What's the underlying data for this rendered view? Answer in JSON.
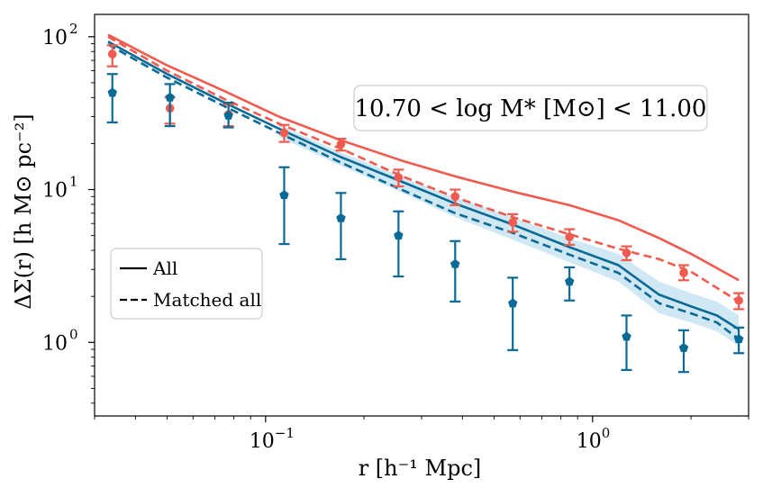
{
  "chart_data": {
    "type": "line",
    "xscale": "log",
    "yscale": "log",
    "xlim": [
      0.03,
      3.0
    ],
    "ylim": [
      0.33,
      140
    ],
    "xlabel": "r [h⁻¹ Mpc]",
    "ylabel": "ΔΣ(r) [h M⊙ pc⁻²]",
    "annotation": "10.70 < log M* [M⊙] < 11.00",
    "x_ticks": [
      {
        "value": 0.1,
        "base": "10",
        "exp": "−1"
      },
      {
        "value": 1.0,
        "base": "10",
        "exp": "0"
      }
    ],
    "y_ticks": [
      {
        "value": 1,
        "base": "10",
        "exp": "0"
      },
      {
        "value": 10,
        "base": "10",
        "exp": "1"
      },
      {
        "value": 100,
        "base": "10",
        "exp": "2"
      }
    ],
    "legend": {
      "position": "center-left",
      "entries": [
        {
          "label": "All",
          "style": "solid"
        },
        {
          "label": "Matched all",
          "style": "dashed"
        }
      ]
    },
    "colors": {
      "red": "#f05a4f",
      "blue": "#0a6a96",
      "band": "#bfe0ef"
    },
    "series": [
      {
        "name": "red-all-model",
        "color": "red",
        "style": "solid",
        "x": [
          0.033,
          0.05,
          0.075,
          0.11,
          0.17,
          0.26,
          0.38,
          0.57,
          0.85,
          1.2,
          1.6,
          2.0,
          2.8
        ],
        "y": [
          103,
          65,
          44,
          30,
          21,
          15.5,
          12.2,
          9.7,
          7.9,
          6.3,
          4.8,
          3.8,
          2.55
        ]
      },
      {
        "name": "red-matched-model",
        "color": "red",
        "style": "dashed",
        "x": [
          0.033,
          0.05,
          0.075,
          0.11,
          0.17,
          0.26,
          0.38,
          0.57,
          0.85,
          1.2,
          1.6,
          2.0,
          2.8
        ],
        "y": [
          100,
          60,
          39,
          27,
          18.5,
          12.3,
          8.9,
          6.6,
          5.1,
          4.1,
          3.5,
          2.9,
          1.85
        ]
      },
      {
        "name": "blue-all-model",
        "color": "blue",
        "style": "solid",
        "x": [
          0.033,
          0.05,
          0.075,
          0.11,
          0.17,
          0.26,
          0.38,
          0.57,
          0.85,
          1.2,
          1.6,
          2.0,
          2.4,
          2.8
        ],
        "y": [
          93,
          57,
          37,
          25,
          16.3,
          11.3,
          8.1,
          5.9,
          4.2,
          3.2,
          2.05,
          1.72,
          1.5,
          1.22
        ]
      },
      {
        "name": "blue-matched-model",
        "color": "blue",
        "style": "dashed",
        "x": [
          0.033,
          0.05,
          0.075,
          0.11,
          0.17,
          0.26,
          0.38,
          0.57,
          0.85,
          1.2,
          1.6,
          2.0,
          2.4,
          2.8
        ],
        "y": [
          89,
          54,
          35,
          23.5,
          15,
          10,
          7,
          5.2,
          3.75,
          2.85,
          1.8,
          1.55,
          1.35,
          1.05
        ]
      }
    ],
    "band": {
      "x": [
        0.11,
        0.17,
        0.26,
        0.38,
        0.57,
        0.85,
        1.2,
        1.6,
        2.0,
        2.4,
        2.8
      ],
      "upper": [
        26.5,
        17.5,
        12.2,
        8.9,
        6.6,
        4.8,
        3.8,
        2.5,
        2.1,
        1.85,
        1.5
      ],
      "lower": [
        22,
        14.3,
        9.6,
        6.6,
        4.7,
        3.35,
        2.5,
        1.55,
        1.35,
        1.18,
        0.95
      ]
    },
    "points": [
      {
        "name": "red-observed",
        "color": "red",
        "marker": "circle",
        "x": [
          0.034,
          0.051,
          0.077,
          0.114,
          0.17,
          0.255,
          0.38,
          0.57,
          0.85,
          1.27,
          1.9,
          2.8
        ],
        "y": [
          77,
          34,
          31,
          23.5,
          19.8,
          12,
          9,
          6.1,
          4.9,
          3.85,
          2.85,
          1.88
        ],
        "yerr_low": [
          64,
          27,
          26,
          20.5,
          18,
          10.5,
          7.9,
          5.3,
          4.35,
          3.45,
          2.55,
          1.65
        ],
        "yerr_high": [
          88,
          40,
          36,
          26.5,
          21.5,
          13.5,
          10,
          6.9,
          5.5,
          4.25,
          3.2,
          2.1
        ]
      },
      {
        "name": "blue-observed",
        "color": "blue",
        "marker": "pentagon",
        "x": [
          0.034,
          0.051,
          0.077,
          0.114,
          0.17,
          0.255,
          0.38,
          0.57,
          0.85,
          1.27,
          1.9,
          2.8
        ],
        "y": [
          43,
          40,
          30.5,
          9.2,
          6.5,
          5,
          3.25,
          1.8,
          2.5,
          1.09,
          0.92,
          1.05
        ],
        "yerr_low": [
          27.5,
          26,
          25.5,
          4.4,
          3.5,
          2.7,
          1.85,
          0.89,
          1.88,
          0.66,
          0.64,
          0.85
        ],
        "yerr_high": [
          57,
          49,
          37,
          14,
          9.5,
          7.2,
          4.6,
          2.65,
          3.1,
          1.5,
          1.2,
          1.25
        ]
      }
    ]
  }
}
